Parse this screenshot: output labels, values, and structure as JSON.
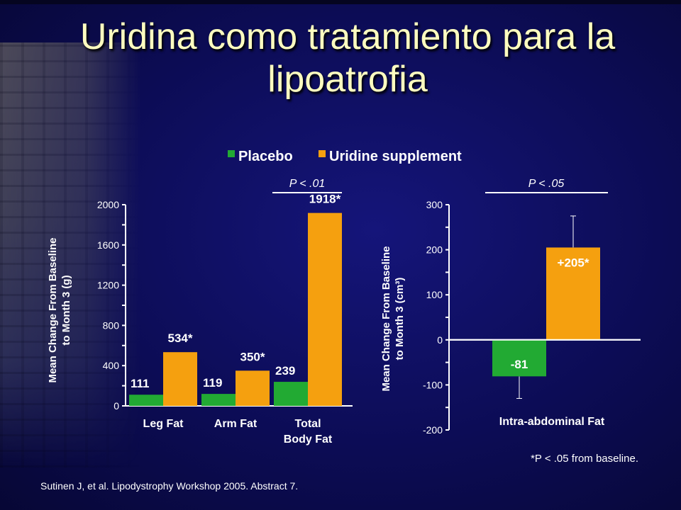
{
  "title": "Uridina como tratamiento para la lipoatrofia",
  "source": "Sutinen J, et al. Lipodystrophy Workshop 2005. Abstract 7.",
  "footnote": "*P < .05 from baseline.",
  "colors": {
    "placebo": "#22aa33",
    "uridine": "#f5a00f",
    "text": "#ffffff",
    "title": "#ffffc0"
  },
  "legend": {
    "placebo": "Placebo",
    "uridine": "Uridine supplement"
  },
  "chart_data": [
    {
      "type": "bar",
      "ylabel": "Mean Change From Baseline\nto Month 3 (g)",
      "ylim": [
        0,
        2000
      ],
      "yticks": [
        0,
        400,
        800,
        1200,
        1600,
        2000
      ],
      "categories": [
        "Leg Fat",
        "Arm Fat",
        "Total\nBody Fat"
      ],
      "series": [
        {
          "name": "Placebo",
          "values": [
            111,
            119,
            239
          ],
          "labels": [
            "111",
            "119",
            "239"
          ]
        },
        {
          "name": "Uridine supplement",
          "values": [
            534,
            350,
            1918
          ],
          "labels": [
            "534*",
            "350*",
            "1918*"
          ]
        }
      ],
      "annotation": "P < .01",
      "legend_position": "top"
    },
    {
      "type": "bar",
      "ylabel": "Mean Change From Baseline\nto Month 3 (cm³)",
      "ylim": [
        -200,
        300
      ],
      "yticks": [
        -200,
        -100,
        0,
        100,
        200,
        300
      ],
      "categories": [
        "Intra-abdominal Fat"
      ],
      "series": [
        {
          "name": "Placebo",
          "values": [
            -81
          ],
          "labels": [
            "-81"
          ],
          "error_low": [
            -130
          ]
        },
        {
          "name": "Uridine supplement",
          "values": [
            205
          ],
          "labels": [
            "+205*"
          ],
          "error_high": [
            275
          ]
        }
      ],
      "annotation": "P < .05"
    }
  ]
}
